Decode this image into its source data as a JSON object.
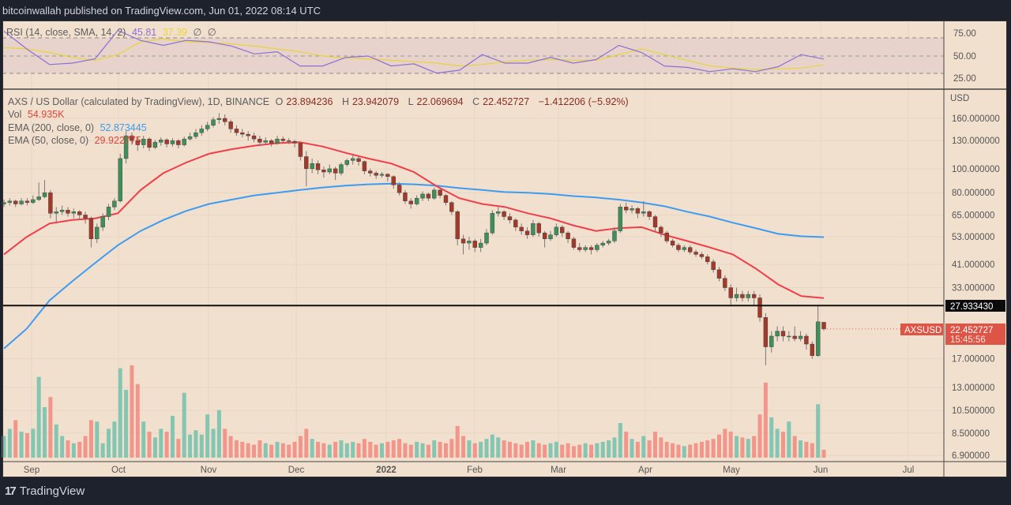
{
  "header": {
    "published": "bitcoinwallah published on TradingView.com, Jun 01, 2022 08:14 UTC"
  },
  "legend": {
    "symbol": "AXS / US Dollar (calculated by TradingView), 1D, BINANCE",
    "open_label": "O",
    "open": "23.894236",
    "high_label": "H",
    "high": "23.942079",
    "low_label": "L",
    "low": "22.069694",
    "close_label": "C",
    "close": "22.452727",
    "change": "−1.412206 (−5.92%)",
    "vol_label": "Vol",
    "vol": "54.935K",
    "ema200_label": "EMA (200, close, 0)",
    "ema200": "52.873445",
    "ema50_label": "EMA (50, close, 0)",
    "ema50": "29.922775"
  },
  "rsi_legend": {
    "label": "RSI (14, close, SMA, 14, 2)",
    "rsi": "45.81",
    "sma": "37.39",
    "extra1": "∅",
    "extra2": "∅"
  },
  "price_axis": {
    "unit": "USD",
    "ticks": [
      "160.000000",
      "130.000000",
      "100.000000",
      "80.000000",
      "65.000000",
      "53.000000",
      "41.000000",
      "33.000000",
      "17.000000",
      "13.000000",
      "10.500000",
      "8.500000",
      "6.900000"
    ]
  },
  "rsi_axis": {
    "ticks": [
      "75.00",
      "50.00",
      "25.00"
    ]
  },
  "time_axis": {
    "ticks": [
      "Sep",
      "Oct",
      "Nov",
      "Dec",
      "2022",
      "Feb",
      "Mar",
      "Apr",
      "May",
      "Jun",
      "Jul"
    ]
  },
  "markers": {
    "level_line": "27.933430",
    "last_price": "22.452727",
    "countdown": "15:45:56",
    "symbol_tag": "AXSUSD"
  },
  "footer": {
    "brand": "TradingView"
  },
  "colors": {
    "background": "#f2e0cf",
    "up": "#3f8f5a",
    "down": "#a23a2c",
    "ema200": "#3d9bf0",
    "ema50": "#ef3e4a",
    "rsi": "#8b6fd6",
    "rsi_sma": "#e8d43a",
    "last_price": "#dd5546",
    "vol_up": "#84c6b2",
    "vol_down": "#f2968b"
  },
  "chart_data": {
    "type": "candlestick",
    "interval": "1D",
    "scale": "log",
    "ylim": [
      6.9,
      170
    ],
    "x_range": [
      "Aug 2021",
      "Jul 2022"
    ],
    "candles_ohlc": [
      [
        72,
        75,
        70,
        73
      ],
      [
        73,
        76,
        71,
        74
      ],
      [
        74,
        75,
        70,
        72
      ],
      [
        72,
        76,
        71,
        74
      ],
      [
        74,
        76,
        71,
        73
      ],
      [
        73,
        78,
        72,
        75
      ],
      [
        75,
        88,
        74,
        77
      ],
      [
        77,
        90,
        76,
        80
      ],
      [
        80,
        82,
        63,
        66
      ],
      [
        66,
        70,
        60,
        67
      ],
      [
        67,
        71,
        65,
        68
      ],
      [
        68,
        70,
        64,
        66
      ],
      [
        66,
        69,
        63,
        67
      ],
      [
        67,
        68,
        62,
        65
      ],
      [
        65,
        67,
        60,
        63
      ],
      [
        63,
        64,
        48,
        52
      ],
      [
        52,
        60,
        50,
        58
      ],
      [
        58,
        66,
        56,
        64
      ],
      [
        64,
        72,
        62,
        70
      ],
      [
        70,
        76,
        68,
        74
      ],
      [
        74,
        115,
        73,
        110
      ],
      [
        110,
        142,
        105,
        136
      ],
      [
        136,
        140,
        125,
        130
      ],
      [
        130,
        134,
        118,
        125
      ],
      [
        125,
        136,
        121,
        132
      ],
      [
        132,
        134,
        118,
        122
      ],
      [
        122,
        131,
        120,
        128
      ],
      [
        128,
        134,
        124,
        131
      ],
      [
        131,
        133,
        122,
        126
      ],
      [
        126,
        133,
        123,
        130
      ],
      [
        130,
        132,
        121,
        125
      ],
      [
        125,
        135,
        123,
        132
      ],
      [
        132,
        140,
        130,
        135
      ],
      [
        135,
        145,
        132,
        140
      ],
      [
        140,
        150,
        136,
        145
      ],
      [
        145,
        155,
        142,
        150
      ],
      [
        150,
        162,
        147,
        158
      ],
      [
        158,
        168,
        152,
        160
      ],
      [
        160,
        166,
        150,
        155
      ],
      [
        155,
        158,
        140,
        145
      ],
      [
        145,
        150,
        136,
        140
      ],
      [
        140,
        145,
        134,
        138
      ],
      [
        138,
        142,
        130,
        136
      ],
      [
        136,
        140,
        128,
        132
      ],
      [
        132,
        136,
        124,
        128
      ],
      [
        128,
        134,
        125,
        130
      ],
      [
        130,
        132,
        123,
        127
      ],
      [
        127,
        136,
        125,
        132
      ],
      [
        132,
        135,
        127,
        130
      ],
      [
        130,
        133,
        126,
        129
      ],
      [
        129,
        131,
        122,
        127
      ],
      [
        127,
        128,
        108,
        112
      ],
      [
        112,
        118,
        85,
        100
      ],
      [
        100,
        110,
        96,
        105
      ],
      [
        105,
        108,
        95,
        99
      ],
      [
        99,
        102,
        92,
        97
      ],
      [
        97,
        104,
        95,
        100
      ],
      [
        100,
        102,
        90,
        96
      ],
      [
        96,
        106,
        94,
        104
      ],
      [
        104,
        110,
        102,
        108
      ],
      [
        108,
        113,
        104,
        110
      ],
      [
        110,
        112,
        103,
        107
      ],
      [
        107,
        108,
        95,
        98
      ],
      [
        98,
        100,
        93,
        96
      ],
      [
        96,
        98,
        91,
        94
      ],
      [
        94,
        97,
        92,
        95
      ],
      [
        95,
        96,
        89,
        93
      ],
      [
        93,
        94,
        83,
        86
      ],
      [
        86,
        88,
        78,
        80
      ],
      [
        80,
        82,
        72,
        74
      ],
      [
        74,
        76,
        69,
        72
      ],
      [
        72,
        78,
        71,
        76
      ],
      [
        76,
        81,
        74,
        79
      ],
      [
        79,
        80,
        74,
        76
      ],
      [
        76,
        84,
        75,
        82
      ],
      [
        82,
        83,
        76,
        78
      ],
      [
        78,
        79,
        71,
        73
      ],
      [
        73,
        74,
        65,
        67
      ],
      [
        67,
        68,
        49,
        52
      ],
      [
        52,
        54,
        45,
        50
      ],
      [
        50,
        53,
        47,
        51
      ],
      [
        51,
        52,
        46,
        48
      ],
      [
        48,
        52,
        46,
        50
      ],
      [
        50,
        57,
        49,
        55
      ],
      [
        55,
        68,
        54,
        66
      ],
      [
        66,
        70,
        64,
        67
      ],
      [
        67,
        68,
        62,
        64
      ],
      [
        64,
        66,
        60,
        62
      ],
      [
        62,
        63,
        56,
        58
      ],
      [
        58,
        60,
        54,
        56
      ],
      [
        56,
        58,
        52,
        54
      ],
      [
        54,
        62,
        53,
        60
      ],
      [
        60,
        61,
        53,
        55
      ],
      [
        55,
        56,
        48,
        52
      ],
      [
        52,
        56,
        51,
        54
      ],
      [
        54,
        60,
        53,
        58
      ],
      [
        58,
        59,
        53,
        55
      ],
      [
        55,
        56,
        50,
        52
      ],
      [
        52,
        53,
        47,
        48
      ],
      [
        48,
        50,
        46,
        47
      ],
      [
        47,
        49,
        46,
        48
      ],
      [
        48,
        49,
        45,
        47
      ],
      [
        47,
        50,
        46,
        49
      ],
      [
        49,
        51,
        48,
        50
      ],
      [
        50,
        52,
        49,
        51
      ],
      [
        51,
        58,
        50,
        56
      ],
      [
        56,
        72,
        55,
        70
      ],
      [
        70,
        73,
        66,
        68
      ],
      [
        68,
        71,
        66,
        69
      ],
      [
        69,
        70,
        63,
        66
      ],
      [
        66,
        74,
        64,
        67
      ],
      [
        67,
        68,
        62,
        64
      ],
      [
        64,
        65,
        56,
        58
      ],
      [
        58,
        59,
        53,
        55
      ],
      [
        55,
        56,
        50,
        51
      ],
      [
        51,
        52,
        48,
        49
      ],
      [
        49,
        50,
        46,
        47
      ],
      [
        47,
        49,
        46,
        48
      ],
      [
        48,
        49,
        45,
        46
      ],
      [
        46,
        47,
        44,
        45
      ],
      [
        45,
        46,
        43,
        44
      ],
      [
        44,
        45,
        41,
        42
      ],
      [
        42,
        43,
        38,
        39
      ],
      [
        39,
        40,
        35,
        36
      ],
      [
        36,
        37,
        32,
        33
      ],
      [
        33,
        34,
        28,
        30
      ],
      [
        30,
        33,
        29,
        31
      ],
      [
        31,
        32,
        29,
        30
      ],
      [
        30,
        32,
        29,
        31
      ],
      [
        31,
        32,
        28,
        30
      ],
      [
        30,
        31,
        24,
        25
      ],
      [
        25,
        26,
        16,
        19
      ],
      [
        19,
        22,
        18,
        21
      ],
      [
        21,
        23,
        20,
        22
      ],
      [
        22,
        23,
        20,
        21
      ],
      [
        21,
        22,
        20,
        21
      ],
      [
        21,
        23,
        20,
        20.5
      ],
      [
        20.5,
        22,
        20,
        21
      ],
      [
        21,
        21.5,
        18.5,
        19.5
      ],
      [
        19.5,
        20,
        17,
        17.5
      ],
      [
        17.5,
        27.93,
        17.3,
        24
      ],
      [
        23.894236,
        23.942079,
        22.069694,
        22.452727
      ]
    ],
    "volume_k": [
      150,
      200,
      260,
      180,
      170,
      200,
      560,
      350,
      420,
      230,
      150,
      120,
      100,
      110,
      150,
      260,
      250,
      100,
      200,
      250,
      620,
      470,
      640,
      510,
      250,
      180,
      140,
      200,
      180,
      290,
      130,
      450,
      160,
      190,
      160,
      300,
      200,
      330,
      200,
      150,
      120,
      110,
      100,
      90,
      120,
      100,
      90,
      110,
      100,
      90,
      110,
      150,
      200,
      130,
      110,
      100,
      90,
      110,
      120,
      100,
      110,
      100,
      130,
      110,
      90,
      100,
      110,
      120,
      130,
      100,
      90,
      110,
      100,
      90,
      120,
      110,
      100,
      130,
      220,
      150,
      120,
      100,
      110,
      130,
      160,
      140,
      120,
      110,
      100,
      90,
      110,
      120,
      100,
      90,
      100,
      110,
      90,
      100,
      80,
      90,
      100,
      90,
      100,
      110,
      120,
      140,
      240,
      180,
      130,
      110,
      150,
      120,
      180,
      140,
      110,
      100,
      90,
      80,
      90,
      100,
      110,
      120,
      130,
      160,
      200,
      180,
      150,
      140,
      130,
      150,
      300,
      520,
      280,
      200,
      180,
      250,
      150,
      120,
      110,
      100,
      370,
      54.935
    ],
    "ema200": [
      18.7,
      22.5,
      29.3,
      35,
      41.5,
      49,
      56,
      62,
      67.5,
      72,
      75,
      78,
      80,
      82,
      84,
      85.5,
      86.5,
      87,
      86.5,
      85.5,
      83.5,
      82,
      80.5,
      80,
      79,
      77.5,
      76.5,
      75,
      73,
      70.5,
      67,
      64,
      60.5,
      57.5,
      54.5,
      53.3,
      52.873445
    ],
    "ema50": [
      45,
      53,
      60,
      62,
      63,
      66,
      82,
      96,
      106,
      115,
      120,
      124,
      127,
      128,
      123,
      116,
      110,
      105,
      97,
      85,
      76,
      72,
      70,
      66,
      63,
      59,
      56,
      57.5,
      58,
      54,
      51,
      48,
      45,
      39.5,
      34,
      30.5,
      29.922775
    ],
    "rsi": {
      "ylim": [
        0,
        100
      ],
      "levels": [
        75,
        50,
        25
      ],
      "values": [
        85,
        60,
        38,
        40,
        46,
        86,
        72,
        65,
        72,
        70,
        64,
        53,
        56,
        36,
        36,
        48,
        50,
        36,
        39,
        26,
        30,
        52,
        40,
        40,
        48,
        40,
        45,
        65,
        55,
        36,
        34,
        28,
        32,
        28,
        35,
        52,
        45.81
      ],
      "sma": [
        62,
        60,
        55,
        48,
        44,
        52,
        70,
        74,
        70,
        69,
        67,
        64,
        60,
        56,
        50,
        47,
        46,
        44,
        42,
        40,
        36,
        38,
        42,
        44,
        45,
        44,
        44,
        52,
        60,
        52,
        44,
        36,
        33,
        31,
        32,
        33,
        37.39
      ]
    }
  }
}
